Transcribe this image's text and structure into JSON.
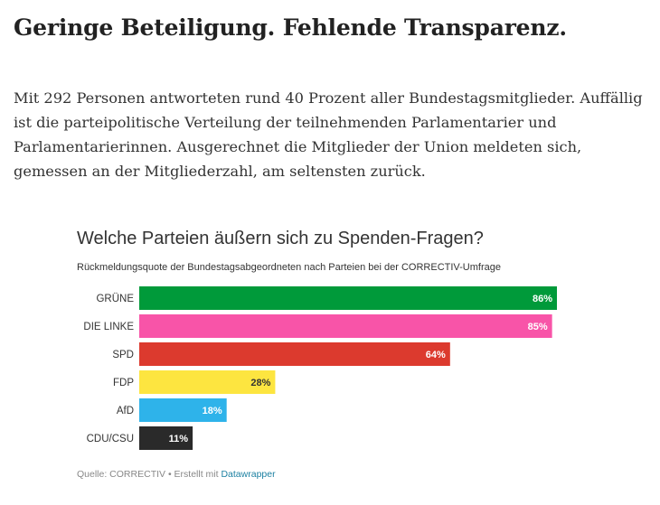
{
  "article": {
    "headline": "Geringe Beteiligung. Fehlende Transparenz.",
    "intro": "Mit 292 Personen antworteten rund 40 Prozent aller Bundestagsmitglieder. Auffällig ist die parteipolitische Verteilung der teilnehmenden Parlamentarier und Parlamentarierinnen. Ausgerechnet die Mitglieder der Union meldeten sich, gemessen an der Mitgliederzahl, am seltensten zurück."
  },
  "chart_data": {
    "type": "bar",
    "orientation": "horizontal",
    "title": "Welche Parteien äußern sich zu Spenden-Fragen?",
    "subtitle": "Rückmeldungsquote der Bundestagsabgeordneten nach Parteien bei der CORRECTIV-Umfrage",
    "categories": [
      "GRÜNE",
      "DIE LINKE",
      "SPD",
      "FDP",
      "AfD",
      "CDU/CSU"
    ],
    "values": [
      86,
      85,
      64,
      28,
      18,
      11
    ],
    "value_labels": [
      "86%",
      "85%",
      "64%",
      "28%",
      "18%",
      "11%"
    ],
    "colors": [
      "#009a3a",
      "#f854a8",
      "#dc3a2e",
      "#fde540",
      "#2eb3ea",
      "#2a2a2a"
    ],
    "label_colors": [
      "#ffffff",
      "#ffffff",
      "#ffffff",
      "#333333",
      "#ffffff",
      "#ffffff"
    ],
    "xlim": [
      0,
      100
    ],
    "grid": false,
    "legend": "none"
  },
  "footer": {
    "source_prefix": "Quelle: CORRECTIV • Erstellt mit ",
    "link_text": "Datawrapper"
  }
}
